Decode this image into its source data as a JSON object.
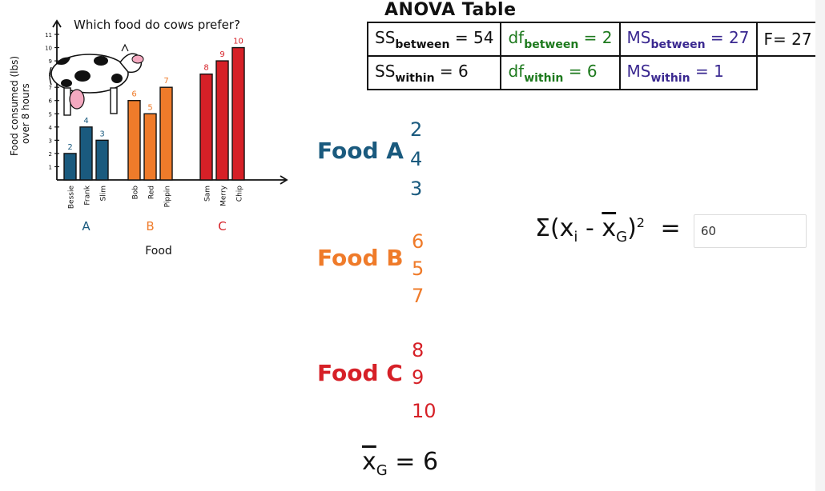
{
  "chart": {
    "title": "Which food do cows prefer?",
    "ylabel_line1": "Food consumed (lbs)",
    "ylabel_line2": "over 8 hours",
    "xlabel": "Food",
    "yticks": [
      "1",
      "2",
      "3",
      "4",
      "5",
      "6",
      "7",
      "8",
      "9",
      "10",
      "11"
    ]
  },
  "chart_data": {
    "type": "bar",
    "title": "Which food do cows prefer?",
    "xlabel": "Food",
    "ylabel": "Food consumed (lbs) over 8 hours",
    "ylim": [
      0,
      11
    ],
    "groups": [
      {
        "name": "A",
        "color": "#1a5a7e",
        "categories": [
          "Bessie",
          "Frank",
          "Slim"
        ],
        "values": [
          2,
          4,
          3
        ]
      },
      {
        "name": "B",
        "color": "#ef7b2a",
        "categories": [
          "Bob",
          "Red",
          "Pippin"
        ],
        "values": [
          6,
          5,
          7
        ]
      },
      {
        "name": "C",
        "color": "#d62027",
        "categories": [
          "Sam",
          "Merry",
          "Chip"
        ],
        "values": [
          8,
          9,
          10
        ]
      }
    ]
  },
  "anova": {
    "title": "ANOVA Table",
    "ss_between_base": "SS",
    "ss_between_sub": "between",
    "ss_between_val": "= 54",
    "df_between_base": "df",
    "df_between_sub": "between",
    "df_between_val": "= 2",
    "ms_between_base": "MS",
    "ms_between_sub": "between",
    "ms_between_val": "= 27",
    "f_val": "F= 27",
    "ss_within_base": "SS",
    "ss_within_sub": "within",
    "ss_within_val": "= 6",
    "df_within_base": "df",
    "df_within_sub": "within",
    "df_within_val": "= 6",
    "ms_within_base": "MS",
    "ms_within_sub": "within",
    "ms_within_val": "= 1"
  },
  "foods": {
    "a": {
      "label": "Food A",
      "values": [
        "2",
        "4",
        "3"
      ]
    },
    "b": {
      "label": "Food B",
      "values": [
        "6",
        "5",
        "7"
      ]
    },
    "c": {
      "label": "Food C",
      "values": [
        "8",
        "9",
        "10"
      ]
    }
  },
  "sum": {
    "expr_prefix": "Σ(x",
    "expr_i": "i",
    "expr_mid": " - ",
    "expr_xbar": "x",
    "expr_g": "G",
    "expr_suffix": ")",
    "expr_sq": "2",
    "equals": "=",
    "input_value": "60"
  },
  "grand_mean": {
    "xbar": "x",
    "sub": "G",
    "equals": "= 6"
  },
  "colors": {
    "blue": "#1a5a7e",
    "orange": "#ef7b2a",
    "red": "#d62027",
    "green": "#1e7a1e",
    "purple": "#3a2890"
  }
}
